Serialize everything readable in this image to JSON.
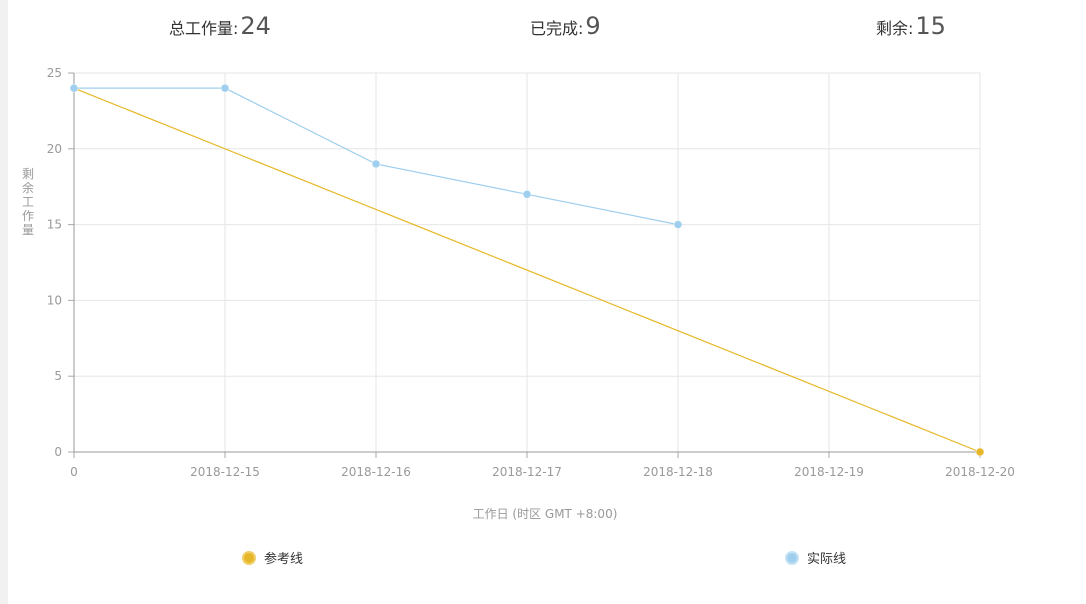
{
  "stats": {
    "total_label": "总工作量:",
    "total_value": "24",
    "done_label": "已完成:",
    "done_value": "9",
    "remain_label": "剩余:",
    "remain_value": "15"
  },
  "chart_data": {
    "type": "line",
    "categories": [
      "0",
      "2018-12-15",
      "2018-12-16",
      "2018-12-17",
      "2018-12-18",
      "2018-12-19",
      "2018-12-20"
    ],
    "ylim": [
      0,
      25
    ],
    "yticks": [
      "0",
      "5",
      "10",
      "15",
      "20",
      "25"
    ],
    "ytick_values": [
      0,
      5,
      10,
      15,
      20,
      25
    ],
    "ylabel": "剩余工作量",
    "xlabel": "工作日 (时区 GMT +8:00)",
    "grid": true,
    "legend_position": "bottom",
    "series": [
      {
        "name": "参考线",
        "color": "#e6b829",
        "values": [
          24,
          null,
          null,
          null,
          null,
          null,
          0
        ],
        "markers_at": [
          6
        ]
      },
      {
        "name": "实际线",
        "color": "#9fcfee",
        "values": [
          24,
          24,
          19,
          17,
          15,
          null,
          null
        ],
        "markers_at": [
          0,
          1,
          2,
          3,
          4
        ]
      }
    ]
  }
}
